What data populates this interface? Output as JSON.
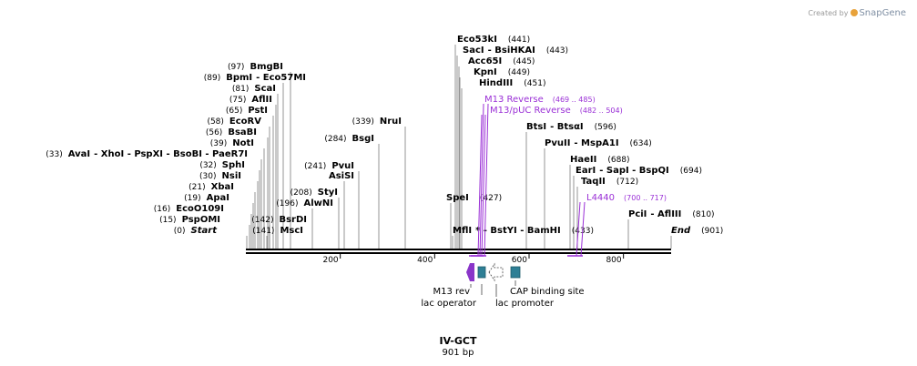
{
  "credit": {
    "prefix": "Created by",
    "brand": "SnapGene"
  },
  "plasmid": {
    "name": "IV-GCT",
    "size_label": "901 bp",
    "length": 901
  },
  "colors": {
    "enzyme": "#000000",
    "primer": "#9a2fd6",
    "feature": "#2e7f95",
    "rev_feature": "#8a35c9",
    "line": "#7a7a7a"
  },
  "ruler": {
    "ticks": [
      200,
      400,
      600,
      800
    ]
  },
  "sites": [
    {
      "name": "Eco53kI",
      "pos": "(441)"
    },
    {
      "name": "SacI",
      "extra": "- BsiHKAI",
      "pos": "(443)"
    },
    {
      "name": "Acc65I",
      "pos": "(445)"
    },
    {
      "name": "KpnI",
      "pos": "(449)"
    },
    {
      "name": "HindIII",
      "pos": "(451)"
    },
    {
      "name": "BmgBI",
      "pos": "(97)"
    },
    {
      "name": "BpmI",
      "extra": "- Eco57MI",
      "pos": "(89)"
    },
    {
      "name": "ScaI",
      "pos": "(81)"
    },
    {
      "name": "AflII",
      "pos": "(75)"
    },
    {
      "name": "PstI",
      "pos": "(65)"
    },
    {
      "name": "EcoRV",
      "pos": "(58)"
    },
    {
      "name": "BsaBI",
      "pos": "(56)"
    },
    {
      "name": "NotI",
      "pos": "(39)"
    },
    {
      "name": "AvaI",
      "extra": "- XhoI   - PspXI   - BsoBI   - PaeR7I",
      "pos": "(33)"
    },
    {
      "name": "SphI",
      "pos": "(32)"
    },
    {
      "name": "NsiI",
      "pos": "(30)"
    },
    {
      "name": "XbaI",
      "pos": "(21)"
    },
    {
      "name": "ApaI",
      "pos": "(19)"
    },
    {
      "name": "EcoO109I",
      "pos": "(16)"
    },
    {
      "name": "PspOMI",
      "pos": "(15)"
    },
    {
      "name": "Start",
      "pos": "(0)"
    },
    {
      "name": "NruI",
      "pos": "(339)"
    },
    {
      "name": "BsgI",
      "pos": "(284)"
    },
    {
      "name": "PvuI",
      "pos": "(241)"
    },
    {
      "name": "AsiSI",
      "pos": ""
    },
    {
      "name": "StyI",
      "pos": "(208)"
    },
    {
      "name": "AlwNI",
      "pos": "(196)"
    },
    {
      "name": "BsrDI",
      "pos": "(142)"
    },
    {
      "name": "MscI",
      "pos": "(141)"
    },
    {
      "name": "BtsI",
      "extra": "- BtsαI",
      "pos": "(596)"
    },
    {
      "name": "PvuII",
      "extra": "- MspA1I",
      "pos": "(634)"
    },
    {
      "name": "HaeII",
      "pos": "(688)"
    },
    {
      "name": "EarI",
      "extra": "- SapI   - BspQI",
      "pos": "(694)"
    },
    {
      "name": "TaqII",
      "pos": "(712)"
    },
    {
      "name": "SpeI",
      "pos": "(427)"
    },
    {
      "name": "MflI",
      "extra": "*   - BstYI   - BamHI",
      "pos": "(433)"
    },
    {
      "name": "PciI",
      "extra": "- AflIII",
      "pos": "(810)"
    },
    {
      "name": "End",
      "pos": "(901)"
    }
  ],
  "primers": [
    {
      "name": "M13 Reverse",
      "pos": "(469 .. 485)"
    },
    {
      "name": "M13/pUC Reverse",
      "pos": "(482 .. 504)"
    },
    {
      "name": "L4440",
      "pos": "(700 .. 717)"
    }
  ],
  "features": [
    {
      "name": "M13 rev",
      "kind": "primer_bind"
    },
    {
      "name": "lac operator",
      "kind": "protein_bind"
    },
    {
      "name": "lac promoter",
      "kind": "promoter"
    },
    {
      "name": "CAP binding site",
      "kind": "protein_bind"
    }
  ]
}
